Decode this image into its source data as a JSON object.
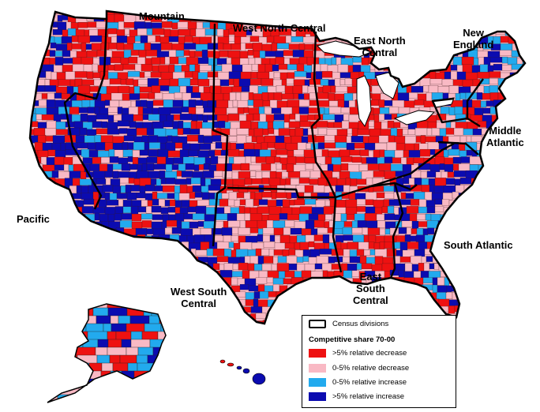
{
  "map": {
    "colors": {
      "strong_decrease": "#ee1111",
      "mild_decrease": "#f9b9c4",
      "mild_increase": "#22aaee",
      "strong_increase": "#0b0bb0",
      "border": "#000000"
    },
    "regions": {
      "pacific": "Pacific",
      "mountain": "Mountain",
      "west_north_central": "West North Central",
      "east_north_central_1": "East North",
      "east_north_central_2": "Central",
      "new_england_1": "New",
      "new_england_2": "England",
      "middle_atlantic_1": "Middle",
      "middle_atlantic_2": "Atlantic",
      "south_atlantic": "South Atlantic",
      "east_south_central_1": "East",
      "east_south_central_2": "South",
      "east_south_central_3": "Central",
      "west_south_central_1": "West South",
      "west_south_central_2": "Central"
    }
  },
  "legend": {
    "census_divisions": "Census divisions",
    "title": "Competitive share 70-00",
    "items": [
      {
        "label": ">5% relative decrease",
        "color": "#ee1111"
      },
      {
        "label": "0-5% relative decrease",
        "color": "#f9b9c4"
      },
      {
        "label": "0-5% relative increase",
        "color": "#22aaee"
      },
      {
        "label": ">5% relative increase",
        "color": "#0b0bb0"
      }
    ]
  }
}
